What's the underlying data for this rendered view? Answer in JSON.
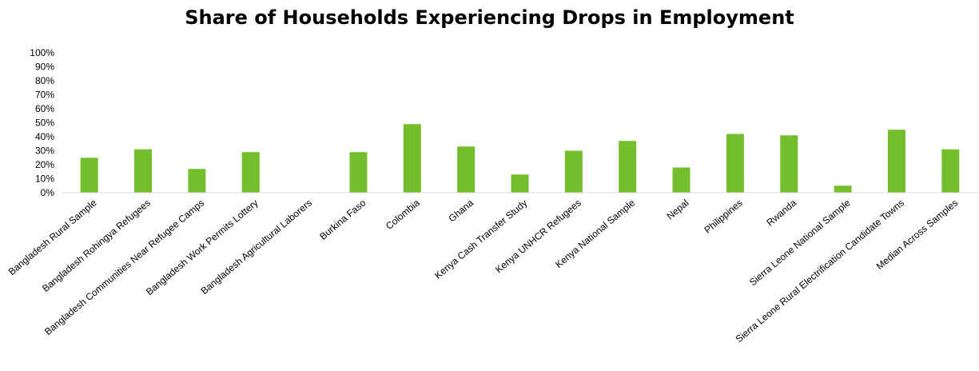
{
  "chart_data": {
    "type": "bar",
    "title": "Share of Households Experiencing Drops in Employment",
    "xlabel": "",
    "ylabel": "",
    "ylim": [
      0,
      100
    ],
    "yticks": [
      "0%",
      "10%",
      "20%",
      "30%",
      "40%",
      "50%",
      "60%",
      "70%",
      "80%",
      "90%",
      "100%"
    ],
    "grid": false,
    "legend": "none",
    "categories": [
      "Bangladesh Rural Sample",
      "Bangladesh Rohingya Refugees",
      "Bangladesh Communities Near Refugee Camps",
      "Bangladesh Work Permits Lottery",
      "Bangladesh Agricultural Laborers",
      "Burkina Faso",
      "Colombia",
      "Ghana",
      "Kenya Cash Transfer Study",
      "Kenya UNHCR Refugees",
      "Kenya National Sample",
      "Nepal",
      "Philippines",
      "Rwanda",
      "Sierra Leone National Sample",
      "Sierra Leone Rural Electrification Candidate Towns",
      "Median Across Samples"
    ],
    "values": [
      25,
      31,
      17,
      29,
      null,
      29,
      49,
      33,
      13,
      30,
      37,
      18,
      42,
      41,
      5,
      45,
      31
    ],
    "bar_color": "#72bf2b",
    "axis_color": "#d9d9d9"
  }
}
